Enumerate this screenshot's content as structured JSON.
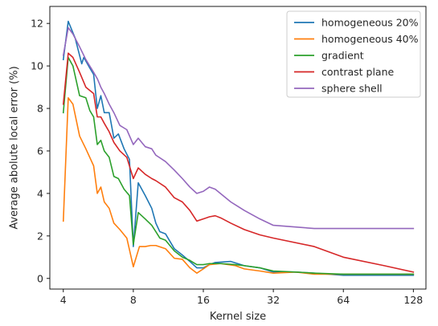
{
  "chart_data": {
    "type": "line",
    "xlabel": "Kernel size",
    "ylabel": "Average abolute local error (%)",
    "x_scale": "log2",
    "xlim": [
      3.5,
      145
    ],
    "ylim": [
      -0.5,
      12.8
    ],
    "grid": false,
    "legend_position": "top-right",
    "x_ticks": [
      4,
      8,
      16,
      32,
      64,
      128
    ],
    "x_tick_labels": [
      "4",
      "8",
      "16",
      "32",
      "64",
      "128"
    ],
    "y_ticks": [
      0,
      2,
      4,
      6,
      8,
      10,
      12
    ],
    "y_tick_labels": [
      "0",
      "2",
      "4",
      "6",
      "8",
      "10",
      "12"
    ],
    "series": [
      {
        "name": "homogeneous 20%",
        "color": "#1f77b4",
        "points": [
          [
            4,
            10.3
          ],
          [
            4.2,
            12.1
          ],
          [
            4.5,
            11.3
          ],
          [
            4.8,
            10.1
          ],
          [
            4.9,
            10.4
          ],
          [
            5.2,
            9.9
          ],
          [
            5.4,
            9.6
          ],
          [
            5.6,
            8.0
          ],
          [
            5.8,
            8.6
          ],
          [
            6.0,
            7.8
          ],
          [
            6.3,
            7.8
          ],
          [
            6.6,
            6.6
          ],
          [
            6.9,
            6.8
          ],
          [
            7.3,
            6.1
          ],
          [
            7.7,
            5.6
          ],
          [
            8,
            1.5
          ],
          [
            8.4,
            4.5
          ],
          [
            9.0,
            3.9
          ],
          [
            9.6,
            3.3
          ],
          [
            10,
            2.6
          ],
          [
            10.4,
            2.2
          ],
          [
            11,
            2.1
          ],
          [
            12,
            1.4
          ],
          [
            13,
            1.1
          ],
          [
            14,
            0.8
          ],
          [
            15,
            0.5
          ],
          [
            16,
            0.5
          ],
          [
            17,
            0.65
          ],
          [
            18,
            0.75
          ],
          [
            21,
            0.8
          ],
          [
            24,
            0.6
          ],
          [
            28,
            0.5
          ],
          [
            32,
            0.3
          ],
          [
            40,
            0.3
          ],
          [
            48,
            0.25
          ],
          [
            64,
            0.15
          ],
          [
            96,
            0.15
          ],
          [
            128,
            0.15
          ]
        ]
      },
      {
        "name": "homogeneous 40%",
        "color": "#ff7f0e",
        "points": [
          [
            4,
            2.7
          ],
          [
            4.2,
            8.5
          ],
          [
            4.4,
            8.2
          ],
          [
            4.7,
            6.7
          ],
          [
            5.0,
            6.1
          ],
          [
            5.4,
            5.3
          ],
          [
            5.6,
            4.0
          ],
          [
            5.8,
            4.3
          ],
          [
            6.0,
            3.6
          ],
          [
            6.3,
            3.3
          ],
          [
            6.6,
            2.6
          ],
          [
            7.0,
            2.3
          ],
          [
            7.5,
            1.9
          ],
          [
            8,
            0.55
          ],
          [
            8.5,
            1.5
          ],
          [
            9.0,
            1.5
          ],
          [
            9.5,
            1.55
          ],
          [
            10,
            1.55
          ],
          [
            11,
            1.4
          ],
          [
            12,
            0.95
          ],
          [
            13,
            0.9
          ],
          [
            14,
            0.5
          ],
          [
            15,
            0.25
          ],
          [
            16,
            0.45
          ],
          [
            17,
            0.65
          ],
          [
            19,
            0.7
          ],
          [
            22,
            0.6
          ],
          [
            24,
            0.45
          ],
          [
            28,
            0.35
          ],
          [
            32,
            0.25
          ],
          [
            40,
            0.3
          ],
          [
            48,
            0.2
          ],
          [
            64,
            0.2
          ],
          [
            96,
            0.2
          ],
          [
            128,
            0.2
          ]
        ]
      },
      {
        "name": "gradient",
        "color": "#2ca02c",
        "points": [
          [
            4,
            7.8
          ],
          [
            4.2,
            10.4
          ],
          [
            4.4,
            10.0
          ],
          [
            4.7,
            8.6
          ],
          [
            5.0,
            8.5
          ],
          [
            5.2,
            7.9
          ],
          [
            5.4,
            7.6
          ],
          [
            5.6,
            6.3
          ],
          [
            5.8,
            6.5
          ],
          [
            6.0,
            6.0
          ],
          [
            6.3,
            5.7
          ],
          [
            6.6,
            4.8
          ],
          [
            6.9,
            4.7
          ],
          [
            7.3,
            4.2
          ],
          [
            7.7,
            3.9
          ],
          [
            8,
            1.6
          ],
          [
            8.4,
            3.1
          ],
          [
            9.0,
            2.8
          ],
          [
            9.6,
            2.5
          ],
          [
            10,
            2.2
          ],
          [
            10.4,
            1.9
          ],
          [
            11,
            1.8
          ],
          [
            12,
            1.3
          ],
          [
            13,
            1.0
          ],
          [
            14,
            0.85
          ],
          [
            15,
            0.65
          ],
          [
            16,
            0.65
          ],
          [
            17,
            0.7
          ],
          [
            19,
            0.7
          ],
          [
            22,
            0.65
          ],
          [
            24,
            0.6
          ],
          [
            28,
            0.5
          ],
          [
            32,
            0.35
          ],
          [
            40,
            0.3
          ],
          [
            48,
            0.25
          ],
          [
            64,
            0.2
          ],
          [
            96,
            0.2
          ],
          [
            128,
            0.2
          ]
        ]
      },
      {
        "name": "contrast plane",
        "color": "#d62728",
        "points": [
          [
            4,
            8.2
          ],
          [
            4.2,
            10.6
          ],
          [
            4.4,
            10.4
          ],
          [
            4.7,
            9.7
          ],
          [
            5.0,
            9.0
          ],
          [
            5.4,
            8.7
          ],
          [
            5.6,
            7.6
          ],
          [
            5.8,
            7.6
          ],
          [
            6.0,
            7.3
          ],
          [
            6.3,
            6.9
          ],
          [
            6.6,
            6.4
          ],
          [
            7.0,
            6.0
          ],
          [
            7.5,
            5.7
          ],
          [
            8,
            4.7
          ],
          [
            8.4,
            5.2
          ],
          [
            9.0,
            4.9
          ],
          [
            9.6,
            4.7
          ],
          [
            10,
            4.6
          ],
          [
            11,
            4.3
          ],
          [
            12,
            3.8
          ],
          [
            13,
            3.6
          ],
          [
            14,
            3.2
          ],
          [
            15,
            2.7
          ],
          [
            16,
            2.8
          ],
          [
            17,
            2.9
          ],
          [
            18,
            2.95
          ],
          [
            19,
            2.85
          ],
          [
            21,
            2.6
          ],
          [
            24,
            2.3
          ],
          [
            28,
            2.05
          ],
          [
            32,
            1.9
          ],
          [
            48,
            1.5
          ],
          [
            64,
            1.0
          ],
          [
            96,
            0.6
          ],
          [
            128,
            0.3
          ]
        ]
      },
      {
        "name": "sphere shell",
        "color": "#9467bd",
        "points": [
          [
            4,
            10.5
          ],
          [
            4.2,
            11.8
          ],
          [
            4.4,
            11.5
          ],
          [
            4.7,
            10.9
          ],
          [
            5.0,
            10.3
          ],
          [
            5.4,
            9.7
          ],
          [
            5.6,
            9.4
          ],
          [
            5.8,
            9.0
          ],
          [
            6.0,
            8.7
          ],
          [
            6.3,
            8.2
          ],
          [
            6.6,
            7.8
          ],
          [
            7.0,
            7.2
          ],
          [
            7.5,
            7.0
          ],
          [
            8,
            6.3
          ],
          [
            8.4,
            6.6
          ],
          [
            9.0,
            6.2
          ],
          [
            9.6,
            6.1
          ],
          [
            10,
            5.8
          ],
          [
            11,
            5.5
          ],
          [
            12,
            5.1
          ],
          [
            13,
            4.7
          ],
          [
            14,
            4.3
          ],
          [
            15,
            4.0
          ],
          [
            16,
            4.1
          ],
          [
            17,
            4.3
          ],
          [
            18,
            4.2
          ],
          [
            21,
            3.6
          ],
          [
            24,
            3.2
          ],
          [
            28,
            2.8
          ],
          [
            32,
            2.5
          ],
          [
            48,
            2.35
          ],
          [
            64,
            2.35
          ],
          [
            96,
            2.35
          ],
          [
            128,
            2.35
          ]
        ]
      }
    ]
  }
}
